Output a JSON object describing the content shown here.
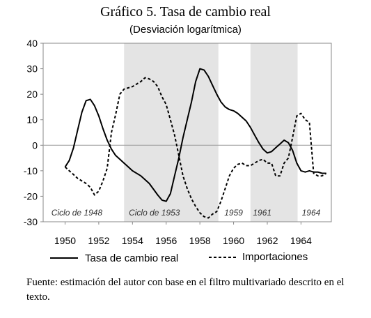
{
  "title": "Gráfico 5. Tasa de cambio real",
  "subtitle": "(Desviación logarítmica)",
  "source": "Fuente: estimación del autor con base en el filtro multivariado descrito en el texto.",
  "chart_data": {
    "type": "line",
    "title": "Gráfico 5. Tasa de cambio real",
    "subtitle": "(Desviación logarítmica)",
    "xlim": [
      1948.7,
      1965.8
    ],
    "ylim": [
      -30,
      40
    ],
    "x_ticks": [
      1950,
      1952,
      1954,
      1956,
      1958,
      1960,
      1962,
      1964
    ],
    "y_ticks": [
      40,
      30,
      20,
      10,
      0,
      -10,
      -20,
      -30
    ],
    "grid": false,
    "zero_line": true,
    "legend_position": "bottom",
    "shaded_periods": [
      {
        "start": 1953.5,
        "end": 1959.1,
        "color": "#e4e4e4"
      },
      {
        "start": 1961.0,
        "end": 1963.8,
        "color": "#e4e4e4"
      }
    ],
    "cycle_labels": [
      {
        "text": "Ciclo de 1948",
        "x": 1950.7,
        "y": -26.5
      },
      {
        "text": "Ciclo de 1953",
        "x": 1955.3,
        "y": -26.5
      },
      {
        "text": "1959",
        "x": 1960.0,
        "y": -26.5
      },
      {
        "text": "1961",
        "x": 1961.7,
        "y": -26.5
      },
      {
        "text": "1964",
        "x": 1964.6,
        "y": -26.5
      }
    ],
    "series": [
      {
        "name": "Tasa de cambio real",
        "style": "solid",
        "color": "#000000",
        "points": [
          [
            1950.0,
            -8.5
          ],
          [
            1950.25,
            -6
          ],
          [
            1950.5,
            -1
          ],
          [
            1950.75,
            6
          ],
          [
            1951.0,
            13
          ],
          [
            1951.25,
            17.5
          ],
          [
            1951.5,
            18
          ],
          [
            1951.75,
            15.5
          ],
          [
            1952.0,
            11.5
          ],
          [
            1952.25,
            6.5
          ],
          [
            1952.5,
            2
          ],
          [
            1952.75,
            -1.5
          ],
          [
            1953.0,
            -4
          ],
          [
            1953.25,
            -5.5
          ],
          [
            1953.5,
            -7
          ],
          [
            1953.75,
            -8.5
          ],
          [
            1954.0,
            -10
          ],
          [
            1954.5,
            -12
          ],
          [
            1955.0,
            -15
          ],
          [
            1955.5,
            -19.5
          ],
          [
            1955.75,
            -21.5
          ],
          [
            1956.0,
            -22
          ],
          [
            1956.25,
            -19
          ],
          [
            1956.5,
            -12
          ],
          [
            1956.75,
            -5
          ],
          [
            1957.0,
            3
          ],
          [
            1957.25,
            10
          ],
          [
            1957.5,
            17
          ],
          [
            1957.75,
            25
          ],
          [
            1958.0,
            30
          ],
          [
            1958.25,
            29.5
          ],
          [
            1958.5,
            27
          ],
          [
            1958.75,
            23.5
          ],
          [
            1959.0,
            20
          ],
          [
            1959.25,
            17
          ],
          [
            1959.5,
            15
          ],
          [
            1959.75,
            14
          ],
          [
            1960.0,
            13.5
          ],
          [
            1960.25,
            12.5
          ],
          [
            1960.5,
            11
          ],
          [
            1960.75,
            9.5
          ],
          [
            1961.0,
            7
          ],
          [
            1961.25,
            4
          ],
          [
            1961.5,
            1
          ],
          [
            1961.75,
            -1.5
          ],
          [
            1962.0,
            -3
          ],
          [
            1962.25,
            -2.5
          ],
          [
            1962.5,
            -1
          ],
          [
            1962.75,
            0.5
          ],
          [
            1963.0,
            2
          ],
          [
            1963.25,
            1
          ],
          [
            1963.5,
            -2
          ],
          [
            1963.75,
            -7
          ],
          [
            1964.0,
            -10
          ],
          [
            1964.25,
            -10.5
          ],
          [
            1964.5,
            -10
          ],
          [
            1964.75,
            -10.5
          ],
          [
            1965.0,
            -10.5
          ],
          [
            1965.25,
            -11
          ],
          [
            1965.5,
            -11
          ]
        ]
      },
      {
        "name": "Importaciones",
        "style": "dashed",
        "color": "#000000",
        "points": [
          [
            1950.0,
            -8.5
          ],
          [
            1950.25,
            -10
          ],
          [
            1950.5,
            -11.5
          ],
          [
            1950.75,
            -13
          ],
          [
            1951.0,
            -14
          ],
          [
            1951.25,
            -15
          ],
          [
            1951.5,
            -16.5
          ],
          [
            1951.75,
            -19.5
          ],
          [
            1952.0,
            -18
          ],
          [
            1952.25,
            -14
          ],
          [
            1952.5,
            -9
          ],
          [
            1952.75,
            5
          ],
          [
            1953.0,
            12
          ],
          [
            1953.25,
            20
          ],
          [
            1953.5,
            22
          ],
          [
            1953.75,
            22.5
          ],
          [
            1954.0,
            23
          ],
          [
            1954.25,
            24
          ],
          [
            1954.5,
            25
          ],
          [
            1954.75,
            26.5
          ],
          [
            1955.0,
            26
          ],
          [
            1955.25,
            25
          ],
          [
            1955.5,
            23
          ],
          [
            1955.75,
            19
          ],
          [
            1956.0,
            16
          ],
          [
            1956.25,
            10
          ],
          [
            1956.5,
            4
          ],
          [
            1956.75,
            -4
          ],
          [
            1957.0,
            -12
          ],
          [
            1957.25,
            -17
          ],
          [
            1957.5,
            -21
          ],
          [
            1957.75,
            -24
          ],
          [
            1958.0,
            -26.5
          ],
          [
            1958.25,
            -28
          ],
          [
            1958.5,
            -28.5
          ],
          [
            1958.75,
            -27
          ],
          [
            1959.0,
            -26
          ],
          [
            1959.25,
            -22
          ],
          [
            1959.5,
            -17
          ],
          [
            1959.75,
            -12
          ],
          [
            1960.0,
            -9
          ],
          [
            1960.25,
            -7.5
          ],
          [
            1960.5,
            -7
          ],
          [
            1960.75,
            -8
          ],
          [
            1961.0,
            -8
          ],
          [
            1961.25,
            -7
          ],
          [
            1961.5,
            -6
          ],
          [
            1961.75,
            -5.5
          ],
          [
            1962.0,
            -7
          ],
          [
            1962.25,
            -7
          ],
          [
            1962.5,
            -12
          ],
          [
            1962.75,
            -12
          ],
          [
            1963.0,
            -7
          ],
          [
            1963.25,
            -5
          ],
          [
            1963.5,
            3
          ],
          [
            1963.75,
            11.5
          ],
          [
            1964.0,
            12.5
          ],
          [
            1964.25,
            10
          ],
          [
            1964.5,
            9
          ],
          [
            1964.75,
            -11
          ],
          [
            1965.0,
            -12
          ],
          [
            1965.25,
            -12
          ],
          [
            1965.5,
            -11
          ]
        ]
      }
    ]
  }
}
